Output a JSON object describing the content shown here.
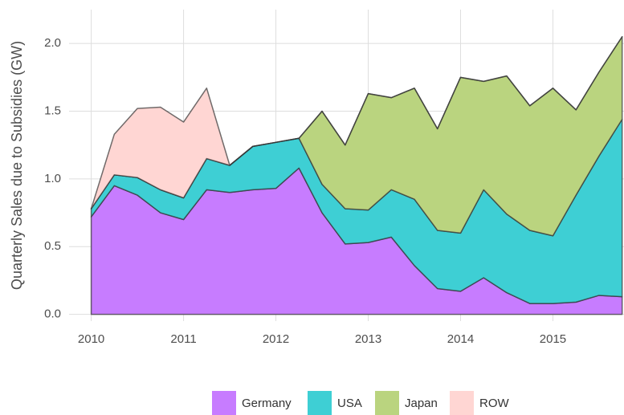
{
  "chart_data": {
    "type": "stacked_area",
    "y_label": "Quarterly Sales due to Subsidies (GW)",
    "x": [
      2010,
      2010.25,
      2010.5,
      2010.75,
      2011,
      2011.25,
      2011.5,
      2011.75,
      2012,
      2012.25,
      2012.5,
      2012.75,
      2013,
      2013.25,
      2013.5,
      2013.75,
      2014,
      2014.25,
      2014.5,
      2014.75,
      2015,
      2015.25,
      2015.5,
      2015.75
    ],
    "series": [
      {
        "name": "Germany",
        "color": "#c77cff",
        "values": [
          0.72,
          0.95,
          0.88,
          0.75,
          0.7,
          0.92,
          0.9,
          0.92,
          0.93,
          1.08,
          0.75,
          0.52,
          0.53,
          0.57,
          0.36,
          0.19,
          0.17,
          0.27,
          0.16,
          0.08,
          0.08,
          0.09,
          0.14,
          0.13
        ]
      },
      {
        "name": "USA",
        "color": "#3ecfd4",
        "values": [
          0.06,
          0.08,
          0.13,
          0.17,
          0.16,
          0.23,
          0.2,
          0.32,
          0.34,
          0.22,
          0.21,
          0.26,
          0.24,
          0.35,
          0.49,
          0.43,
          0.43,
          0.65,
          0.58,
          0.54,
          0.5,
          0.79,
          1.03,
          1.31
        ]
      },
      {
        "name": "Japan",
        "color": "#bad47f",
        "values": [
          0,
          0,
          0,
          0,
          0,
          0,
          0,
          0,
          0,
          0,
          0.54,
          0.47,
          0.86,
          0.68,
          0.82,
          0.75,
          1.15,
          0.8,
          1.02,
          0.92,
          1.09,
          0.63,
          0.62,
          0.61
        ]
      },
      {
        "name": "ROW",
        "color": "#ffd6d3",
        "values": [
          0,
          0.3,
          0.51,
          0.61,
          0.56,
          0.52,
          0,
          0,
          0,
          0,
          0,
          0,
          0,
          0,
          0,
          0,
          0,
          0,
          0,
          0,
          0,
          0,
          0,
          0
        ]
      }
    ],
    "xlim": [
      2009.76,
      2015.77
    ],
    "xticks": [
      2010,
      2011,
      2012,
      2013,
      2014,
      2015
    ],
    "ylim": [
      -0.05,
      2.25
    ],
    "yticks": [
      {
        "value": 0,
        "label": "0.0"
      },
      0.5,
      {
        "value": 1,
        "label": "1.0"
      },
      1.5,
      {
        "value": 2,
        "label": "2.0"
      }
    ],
    "grid": true,
    "legend": "bottom"
  }
}
